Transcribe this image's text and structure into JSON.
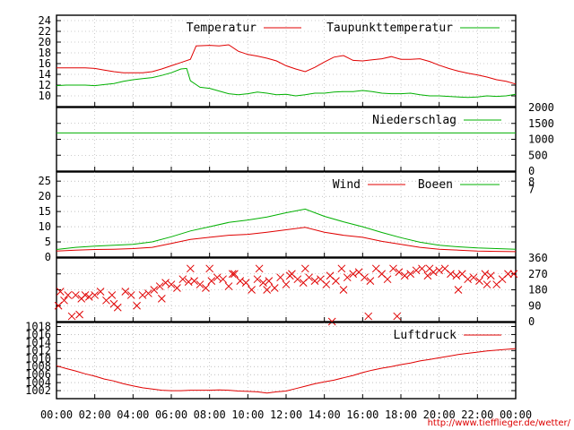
{
  "colors": {
    "red": "#e00000",
    "green": "#00b000",
    "grid": "#9a9a9a",
    "frame": "#000000"
  },
  "credit": "http://www.tiefflieger.de/wetter/",
  "chart_data": [
    {
      "id": "temperature",
      "type": "line",
      "ylim": [
        8,
        25
      ],
      "yticks": [
        10,
        12,
        14,
        16,
        18,
        20,
        22,
        24
      ],
      "tick_labels": [
        "10",
        "12",
        "14",
        "16",
        "18",
        "20",
        "22",
        "24"
      ],
      "grid": true,
      "series": [
        {
          "name": "Temperatur",
          "color": "#e00000",
          "x": [
            0,
            0.5,
            1,
            1.5,
            2,
            2.5,
            3,
            3.5,
            4,
            4.5,
            5,
            5.5,
            6,
            6.5,
            7,
            7.3,
            8,
            8.5,
            9,
            9.5,
            10,
            10.5,
            11,
            11.5,
            12,
            12.5,
            13,
            13.5,
            14,
            14.5,
            15,
            15.5,
            16,
            16.5,
            17,
            17.5,
            18,
            18.5,
            19,
            19.5,
            20,
            20.5,
            21,
            21.5,
            22,
            22.5,
            23,
            23.5,
            24
          ],
          "values": [
            15.2,
            15.2,
            15.2,
            15.2,
            15.1,
            14.8,
            14.5,
            14.3,
            14.3,
            14.3,
            14.5,
            15.0,
            15.6,
            16.2,
            16.8,
            19.3,
            19.4,
            19.3,
            19.5,
            18.3,
            17.7,
            17.4,
            17.0,
            16.5,
            15.6,
            15.0,
            14.5,
            15.3,
            16.3,
            17.2,
            17.5,
            16.6,
            16.5,
            16.7,
            16.9,
            17.3,
            16.8,
            16.8,
            16.9,
            16.4,
            15.7,
            15.1,
            14.6,
            14.2,
            13.9,
            13.5,
            13.0,
            12.7,
            12.2
          ]
        },
        {
          "name": "Taupunkttemperatur",
          "color": "#00b000",
          "x": [
            0,
            0.5,
            1,
            1.5,
            2,
            2.5,
            3,
            3.5,
            4,
            4.5,
            5,
            5.5,
            6,
            6.5,
            6.8,
            7,
            7.5,
            8,
            8.5,
            9,
            9.5,
            10,
            10.5,
            11,
            11.5,
            12,
            12.5,
            13,
            13.5,
            14,
            14.5,
            15,
            15.5,
            16,
            16.5,
            17,
            17.5,
            18,
            18.5,
            19,
            19.5,
            20,
            20.5,
            21,
            21.5,
            22,
            22.5,
            23,
            23.5,
            24
          ],
          "values": [
            11.9,
            12.0,
            12.0,
            12.0,
            11.9,
            12.1,
            12.3,
            12.7,
            13.0,
            13.2,
            13.4,
            13.8,
            14.3,
            15.0,
            15.1,
            12.8,
            11.6,
            11.4,
            10.9,
            10.4,
            10.2,
            10.4,
            10.7,
            10.5,
            10.2,
            10.3,
            10.0,
            10.2,
            10.5,
            10.5,
            10.7,
            10.8,
            10.8,
            11.0,
            10.8,
            10.5,
            10.4,
            10.4,
            10.5,
            10.2,
            10.0,
            10.0,
            9.9,
            9.8,
            9.7,
            9.8,
            10.0,
            9.9,
            10.0,
            10.3
          ]
        }
      ]
    },
    {
      "id": "precipitation",
      "type": "line",
      "ylim": [
        0,
        2000
      ],
      "yticks": [
        0,
        500,
        1000,
        1500,
        2000
      ],
      "tick_labels": [
        "0",
        "500",
        "1000",
        "1500",
        "2000"
      ],
      "grid": true,
      "series": [
        {
          "name": "Niederschlag",
          "color": "#00b000",
          "x": [
            0,
            24
          ],
          "values": [
            1200,
            1200
          ]
        }
      ]
    },
    {
      "id": "wind",
      "type": "line",
      "ylim": [
        0,
        28
      ],
      "yticks": [
        0,
        5,
        10,
        15,
        20,
        25
      ],
      "tick_labels": [
        "0",
        "5",
        "10",
        "15",
        "20",
        "25"
      ],
      "right_labels": [
        {
          "value": 7,
          "y": 22.3
        },
        {
          "value": 8,
          "y": 24.7
        }
      ],
      "grid": true,
      "series": [
        {
          "name": "Wind",
          "color": "#e00000",
          "x": [
            0,
            1,
            2,
            3,
            4,
            5,
            6,
            7,
            8,
            9,
            10,
            11,
            12,
            13,
            14,
            15,
            16,
            17,
            18,
            19,
            20,
            21,
            22,
            23,
            24
          ],
          "values": [
            2,
            2.3,
            2.5,
            2.6,
            2.8,
            3.2,
            4.5,
            5.8,
            6.5,
            7.2,
            7.5,
            8.2,
            9.0,
            9.8,
            8.2,
            7.2,
            6.5,
            5.2,
            4.2,
            3.2,
            2.6,
            2.3,
            2.0,
            1.9,
            1.8
          ]
        },
        {
          "name": "Boeen",
          "color": "#00b000",
          "x": [
            0,
            1,
            2,
            3,
            4,
            5,
            6,
            7,
            8,
            9,
            10,
            11,
            12,
            13,
            14,
            15,
            16,
            17,
            18,
            19,
            20,
            21,
            22,
            23,
            24
          ],
          "values": [
            2.5,
            3.2,
            3.6,
            3.9,
            4.2,
            5.0,
            6.7,
            8.6,
            10.0,
            11.4,
            12.2,
            13.2,
            14.6,
            15.8,
            13.4,
            11.6,
            10.0,
            8.1,
            6.4,
            4.9,
            3.9,
            3.4,
            3.0,
            2.8,
            2.6
          ]
        }
      ]
    },
    {
      "id": "wind-direction",
      "type": "scatter",
      "ylim": [
        0,
        360
      ],
      "yticks": [
        0,
        90,
        180,
        270,
        360
      ],
      "tick_labels": [
        "0",
        "90",
        "180",
        "270",
        "360"
      ],
      "grid": true,
      "series": [
        {
          "name": "",
          "color": "#e00000",
          "marker": "x",
          "x": [
            0.1,
            0.2,
            0.4,
            0.6,
            0.8,
            1.0,
            1.3,
            1.5,
            1.7,
            2.0,
            2.3,
            2.6,
            2.9,
            3.2,
            3.6,
            3.9,
            4.2,
            4.5,
            4.8,
            5.1,
            5.4,
            5.7,
            6.0,
            6.3,
            6.6,
            6.9,
            7.2,
            7.5,
            7.8,
            8.1,
            8.4,
            8.7,
            9.0,
            9.3,
            9.6,
            9.9,
            10.2,
            10.5,
            10.8,
            11.1,
            11.4,
            11.7,
            12.0,
            12.3,
            12.6,
            12.9,
            13.2,
            13.5,
            13.8,
            14.1,
            14.3,
            14.6,
            14.9,
            15.2,
            15.5,
            15.8,
            16.1,
            16.4,
            16.7,
            17.0,
            17.3,
            17.6,
            17.9,
            18.2,
            18.5,
            18.8,
            19.1,
            19.4,
            19.7,
            20.0,
            20.3,
            20.6,
            20.9,
            21.2,
            21.5,
            21.8,
            22.1,
            22.4,
            22.7,
            23.0,
            23.3,
            23.6,
            23.9,
            1.2,
            3.0,
            5.5,
            7.0,
            9.2,
            10.6,
            12.2,
            14.4,
            16.3,
            17.8,
            13.0,
            15.0,
            19.5,
            21.0,
            22.5,
            8.0,
            11.0
          ],
          "values": [
            90,
            170,
            120,
            150,
            30,
            150,
            130,
            150,
            140,
            150,
            170,
            120,
            150,
            80,
            170,
            150,
            90,
            150,
            160,
            180,
            200,
            220,
            210,
            190,
            240,
            225,
            230,
            210,
            190,
            230,
            250,
            240,
            200,
            270,
            230,
            220,
            180,
            240,
            220,
            230,
            190,
            250,
            210,
            270,
            240,
            220,
            250,
            230,
            240,
            210,
            260,
            230,
            300,
            250,
            270,
            280,
            250,
            230,
            300,
            270,
            240,
            300,
            280,
            260,
            270,
            290,
            300,
            260,
            280,
            290,
            300,
            270,
            260,
            270,
            240,
            250,
            230,
            270,
            260,
            210,
            240,
            270,
            270,
            40,
            100,
            130,
            300,
            270,
            300,
            260,
            0,
            30,
            30,
            300,
            180,
            300,
            180,
            210,
            300,
            180
          ]
        }
      ]
    },
    {
      "id": "pressure",
      "type": "line",
      "ylim": [
        1000,
        1019
      ],
      "yticks": [
        1002,
        1004,
        1006,
        1008,
        1010,
        1012,
        1014,
        1016,
        1018
      ],
      "tick_labels": [
        "1002",
        "1004",
        "1006",
        "1008",
        "1010",
        "1012",
        "1014",
        "1016",
        "1018"
      ],
      "grid": true,
      "x_ticks": [
        0,
        2,
        4,
        6,
        8,
        10,
        12,
        14,
        16,
        18,
        20,
        22,
        24
      ],
      "x_tick_labels": [
        "00:00",
        "02:00",
        "04:00",
        "06:00",
        "08:00",
        "10:00",
        "12:00",
        "14:00",
        "16:00",
        "18:00",
        "20:00",
        "22:00",
        "00:00"
      ],
      "series": [
        {
          "name": "Luftdruck",
          "color": "#e00000",
          "x": [
            0,
            0.5,
            1,
            1.5,
            2,
            2.5,
            3,
            3.5,
            4,
            4.5,
            5,
            5.5,
            6,
            6.5,
            7,
            7.5,
            8,
            8.5,
            9,
            9.5,
            10,
            10.5,
            11,
            11.5,
            12,
            12.5,
            13,
            13.5,
            14,
            14.5,
            15,
            15.5,
            16,
            16.5,
            17,
            17.5,
            18,
            18.5,
            19,
            19.5,
            20,
            20.5,
            21,
            21.5,
            22,
            22.5,
            23,
            23.5,
            24
          ],
          "values": [
            1008.2,
            1007.5,
            1006.9,
            1006.2,
            1005.6,
            1004.9,
            1004.4,
            1003.7,
            1003.2,
            1002.7,
            1002.4,
            1002.1,
            1002.0,
            1002.0,
            1002.1,
            1002.1,
            1002.1,
            1002.2,
            1002.1,
            1001.9,
            1001.8,
            1001.7,
            1001.4,
            1001.7,
            1001.9,
            1002.5,
            1003.1,
            1003.7,
            1004.2,
            1004.6,
            1005.2,
            1005.8,
            1006.5,
            1007.1,
            1007.6,
            1008.0,
            1008.5,
            1008.9,
            1009.4,
            1009.8,
            1010.2,
            1010.6,
            1011.0,
            1011.3,
            1011.6,
            1011.9,
            1012.1,
            1012.3,
            1012.5
          ]
        }
      ]
    }
  ]
}
